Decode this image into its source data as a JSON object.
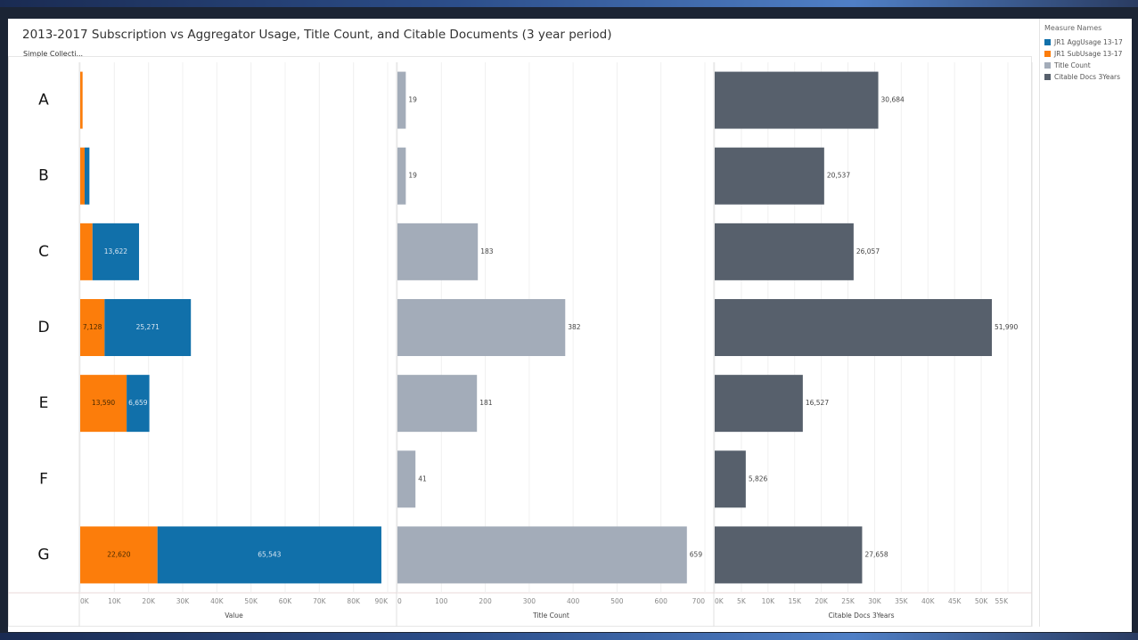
{
  "title": "2013-2017 Subscription vs Aggregator Usage, Title Count, and Citable Documents (3 year period)",
  "filter_label": "Simple Collecti...",
  "legend": {
    "title": "Measure Names",
    "items": [
      {
        "label": "JR1 AggUsage 13-17",
        "color": "#1170aa"
      },
      {
        "label": "JR1 SubUsage 13-17",
        "color": "#fc7d0b"
      },
      {
        "label": "Title Count",
        "color": "#a3acb9"
      },
      {
        "label": "Citable Docs 3Years",
        "color": "#57606c"
      }
    ]
  },
  "chart_data": [
    {
      "type": "bar",
      "orientation": "horizontal",
      "stacked": true,
      "categories": [
        "A",
        "B",
        "C",
        "D",
        "E",
        "F",
        "G"
      ],
      "xlabel": "Value",
      "xlim": [
        0,
        90000
      ],
      "ticks": [
        "0K",
        "10K",
        "20K",
        "30K",
        "40K",
        "50K",
        "60K",
        "70K",
        "80K",
        "90K"
      ],
      "series": [
        {
          "name": "JR1 SubUsage 13-17",
          "color": "#fc7d0b",
          "values": [
            700,
            1300,
            3600,
            7128,
            13590,
            0,
            22620
          ]
        },
        {
          "name": "JR1 AggUsage 13-17",
          "color": "#1170aa",
          "values": [
            0,
            1400,
            13622,
            25271,
            6659,
            0,
            65543
          ]
        }
      ],
      "labels": [
        {
          "category": "C",
          "series": "JR1 AggUsage 13-17",
          "text": "13,622"
        },
        {
          "category": "D",
          "series": "JR1 SubUsage 13-17",
          "text": "7,128"
        },
        {
          "category": "D",
          "series": "JR1 AggUsage 13-17",
          "text": "25,271"
        },
        {
          "category": "E",
          "series": "JR1 SubUsage 13-17",
          "text": "13,590"
        },
        {
          "category": "E",
          "series": "JR1 AggUsage 13-17",
          "text": "6,659"
        },
        {
          "category": "G",
          "series": "JR1 SubUsage 13-17",
          "text": "22,620"
        },
        {
          "category": "G",
          "series": "JR1 AggUsage 13-17",
          "text": "65,543"
        }
      ]
    },
    {
      "type": "bar",
      "orientation": "horizontal",
      "categories": [
        "A",
        "B",
        "C",
        "D",
        "E",
        "F",
        "G"
      ],
      "xlabel": "Title Count",
      "xlim": [
        0,
        700
      ],
      "ticks": [
        "0",
        "100",
        "200",
        "300",
        "400",
        "500",
        "600",
        "700"
      ],
      "series": [
        {
          "name": "Title Count",
          "color": "#a3acb9",
          "values": [
            19,
            19,
            183,
            382,
            181,
            41,
            659
          ]
        }
      ]
    },
    {
      "type": "bar",
      "orientation": "horizontal",
      "categories": [
        "A",
        "B",
        "C",
        "D",
        "E",
        "F",
        "G"
      ],
      "xlabel": "Citable Docs 3Years",
      "xlim": [
        0,
        55000
      ],
      "ticks": [
        "0K",
        "5K",
        "10K",
        "15K",
        "20K",
        "25K",
        "30K",
        "35K",
        "40K",
        "45K",
        "50K",
        "55K"
      ],
      "series": [
        {
          "name": "Citable Docs 3Years",
          "color": "#57606c",
          "values": [
            30684,
            20537,
            26057,
            51990,
            16527,
            5826,
            27658
          ]
        }
      ],
      "labels": [
        "30,684",
        "20,537",
        "26,057",
        "51,990",
        "16,527",
        "5,826",
        "27,658"
      ]
    }
  ]
}
